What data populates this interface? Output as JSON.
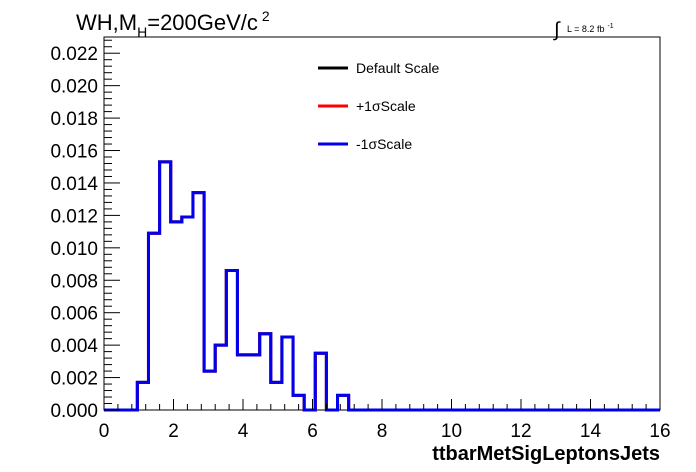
{
  "chart_data": {
    "type": "histogram",
    "title_main": "WH,M",
    "title_sub": "H",
    "title_rest": "=200GeV/c",
    "title_sup": "2",
    "lumi_integral": "∫",
    "lumi_text": "L = 8.2 fb",
    "lumi_sup": "-1",
    "xlabel": "ttbarMetSigLeptonsJets",
    "xlim": [
      0,
      16
    ],
    "ylim": [
      0,
      0.023
    ],
    "xticks": [
      "0",
      "2",
      "4",
      "6",
      "8",
      "10",
      "12",
      "14",
      "16"
    ],
    "yticks": [
      "0.000",
      "0.002",
      "0.004",
      "0.006",
      "0.008",
      "0.010",
      "0.012",
      "0.014",
      "0.016",
      "0.018",
      "0.020",
      "0.022"
    ],
    "legend_position": "top-center",
    "bin_width": 0.32,
    "series": [
      {
        "name": "Default Scale",
        "color": "#000000",
        "values": [
          0,
          0,
          0,
          0.0017,
          0.0109,
          0.0153,
          0.0116,
          0.0119,
          0.0134,
          0.0024,
          0.004,
          0.0086,
          0.0034,
          0.0034,
          0.0047,
          0.0017,
          0.0045,
          0.0009,
          0,
          0.0035,
          0,
          0.0009,
          0,
          0,
          0,
          0,
          0,
          0,
          0,
          0,
          0,
          0,
          0,
          0,
          0,
          0,
          0,
          0,
          0,
          0,
          0,
          0,
          0,
          0,
          0,
          0,
          0,
          0,
          0,
          0
        ]
      },
      {
        "name": "+1σScale",
        "color": "#ff0000",
        "values": [
          0,
          0,
          0,
          0.0017,
          0.0109,
          0.0153,
          0.0116,
          0.0119,
          0.0134,
          0.0024,
          0.004,
          0.0086,
          0.0034,
          0.0034,
          0.0047,
          0.0017,
          0.0045,
          0.0009,
          0,
          0.0035,
          0,
          0.0009,
          0,
          0,
          0,
          0,
          0,
          0,
          0,
          0,
          0,
          0,
          0,
          0,
          0,
          0,
          0,
          0,
          0,
          0,
          0,
          0,
          0,
          0,
          0,
          0,
          0,
          0,
          0,
          0
        ]
      },
      {
        "name": "-1σScale",
        "color": "#0000ee",
        "values": [
          0,
          0,
          0,
          0.0017,
          0.0109,
          0.0153,
          0.0116,
          0.0119,
          0.0134,
          0.0024,
          0.004,
          0.0086,
          0.0034,
          0.0034,
          0.0047,
          0.0017,
          0.0045,
          0.0009,
          0,
          0.0035,
          0,
          0.0009,
          0,
          0,
          0,
          0,
          0,
          0,
          0,
          0,
          0,
          0,
          0,
          0,
          0,
          0,
          0,
          0,
          0,
          0,
          0,
          0,
          0,
          0,
          0,
          0,
          0,
          0,
          0,
          0
        ]
      }
    ]
  }
}
